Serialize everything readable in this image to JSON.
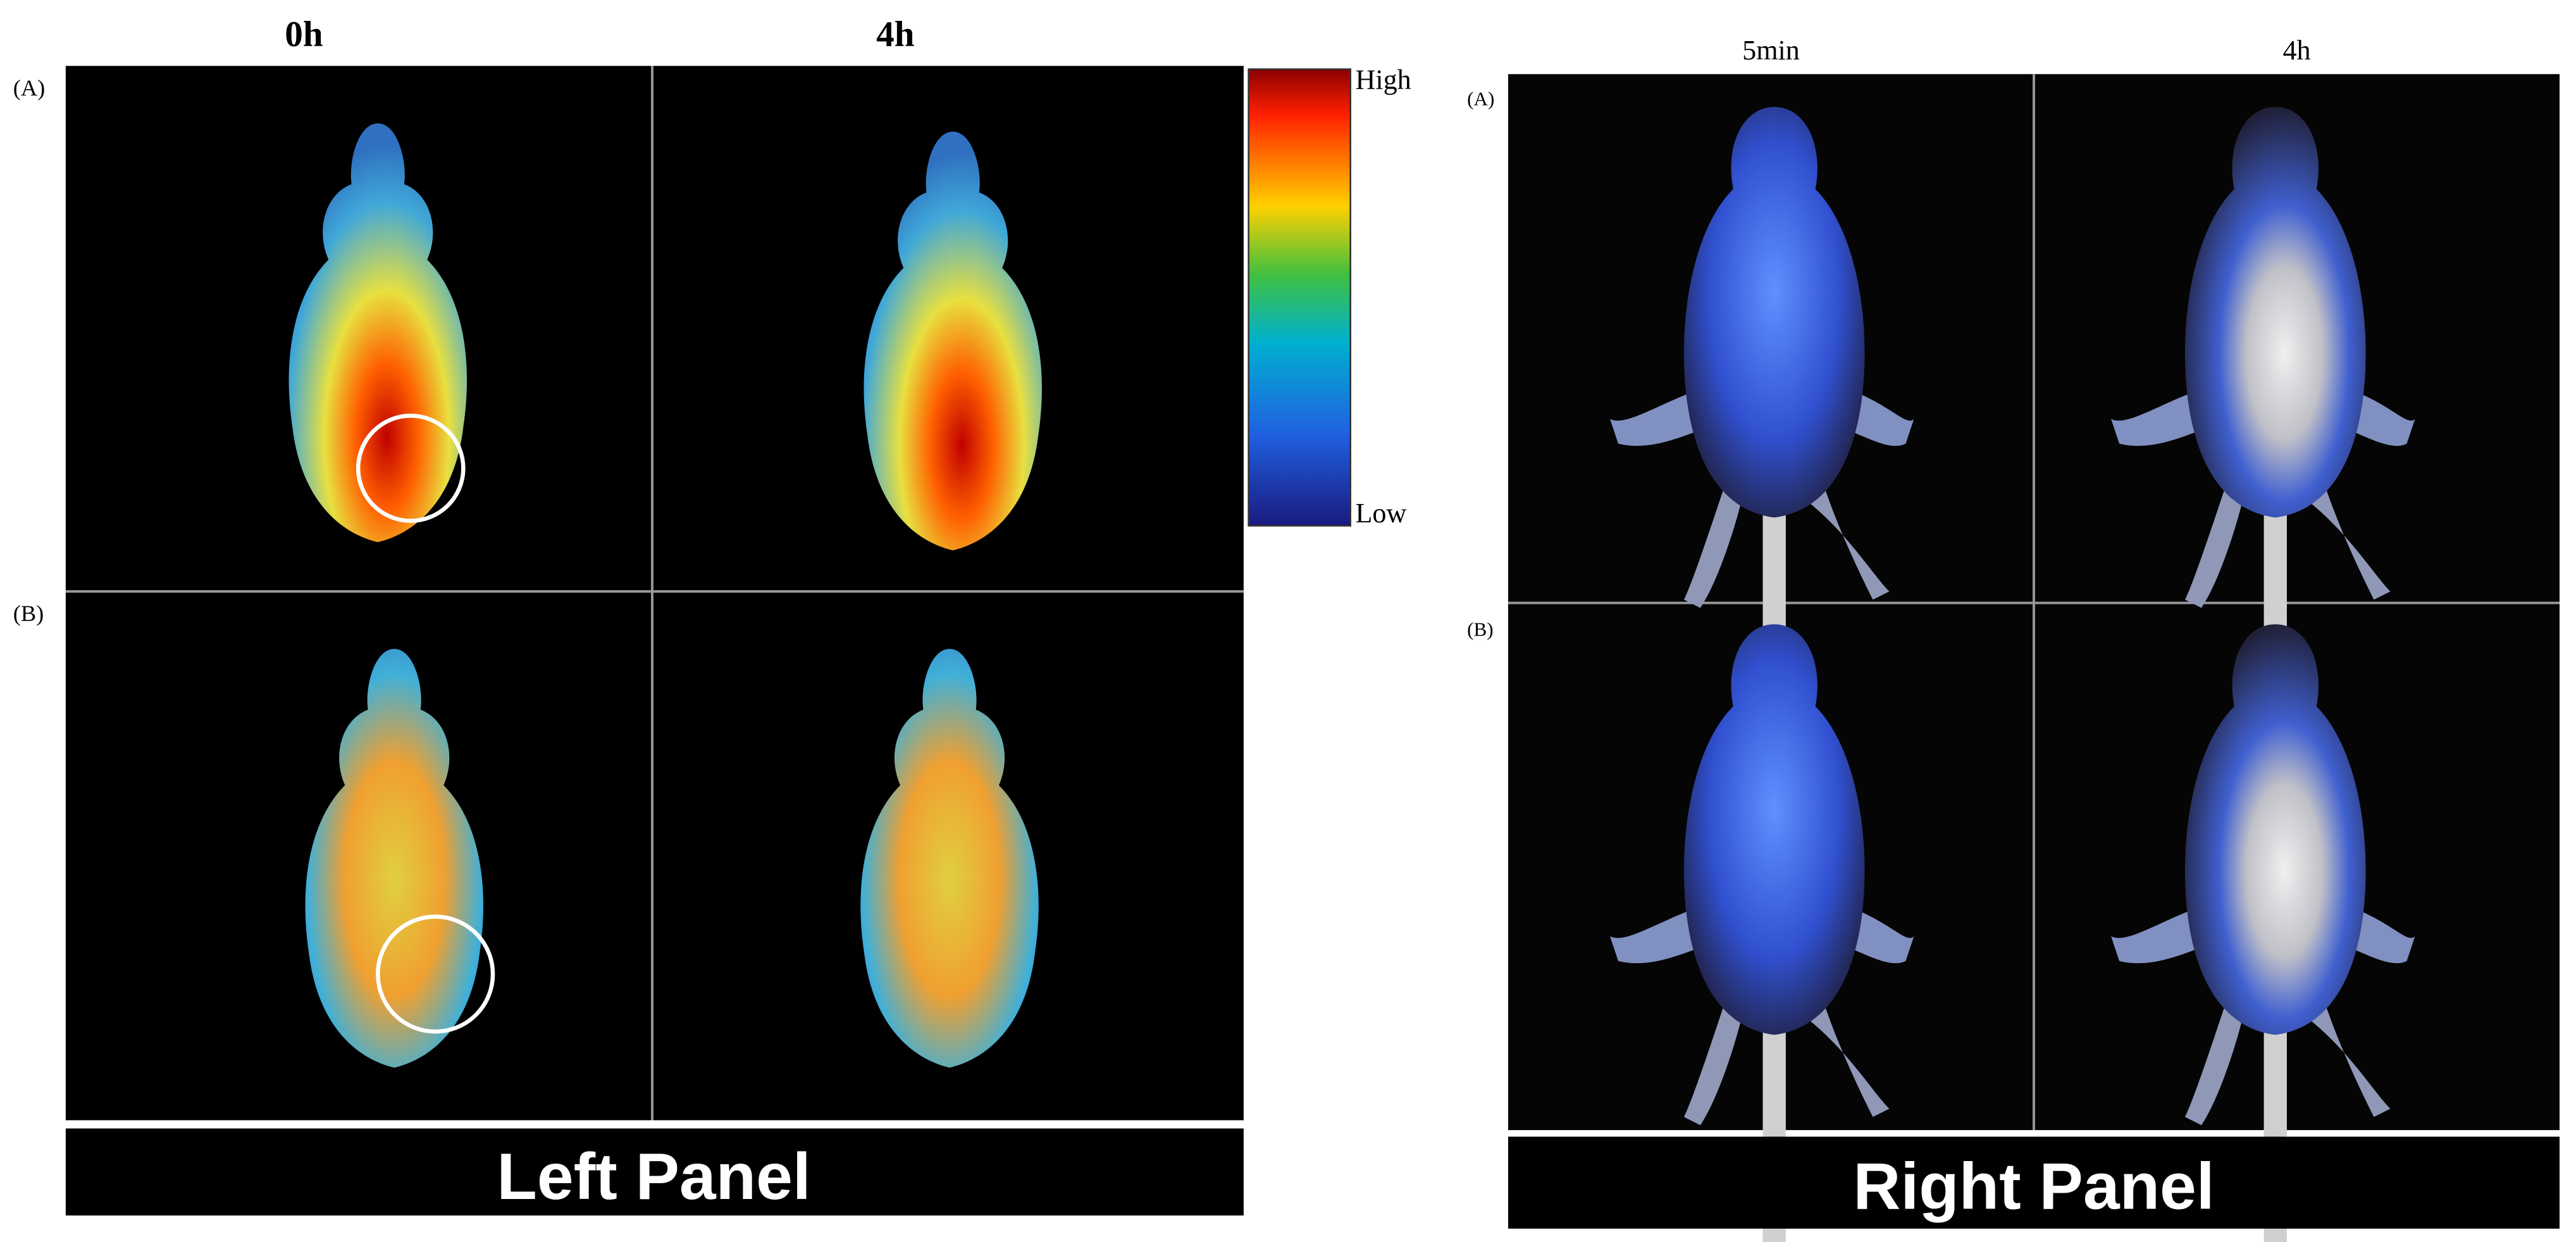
{
  "left_panel": {
    "columns": [
      "0h",
      "4h"
    ],
    "rows": [
      "(A)",
      "(B)"
    ],
    "colorbar": {
      "high": "High",
      "low": "Low"
    },
    "caption": "Left Panel"
  },
  "right_panel": {
    "columns": [
      "5min",
      "4h"
    ],
    "rows": [
      "(A)",
      "(B)"
    ],
    "caption": "Right Panel"
  }
}
